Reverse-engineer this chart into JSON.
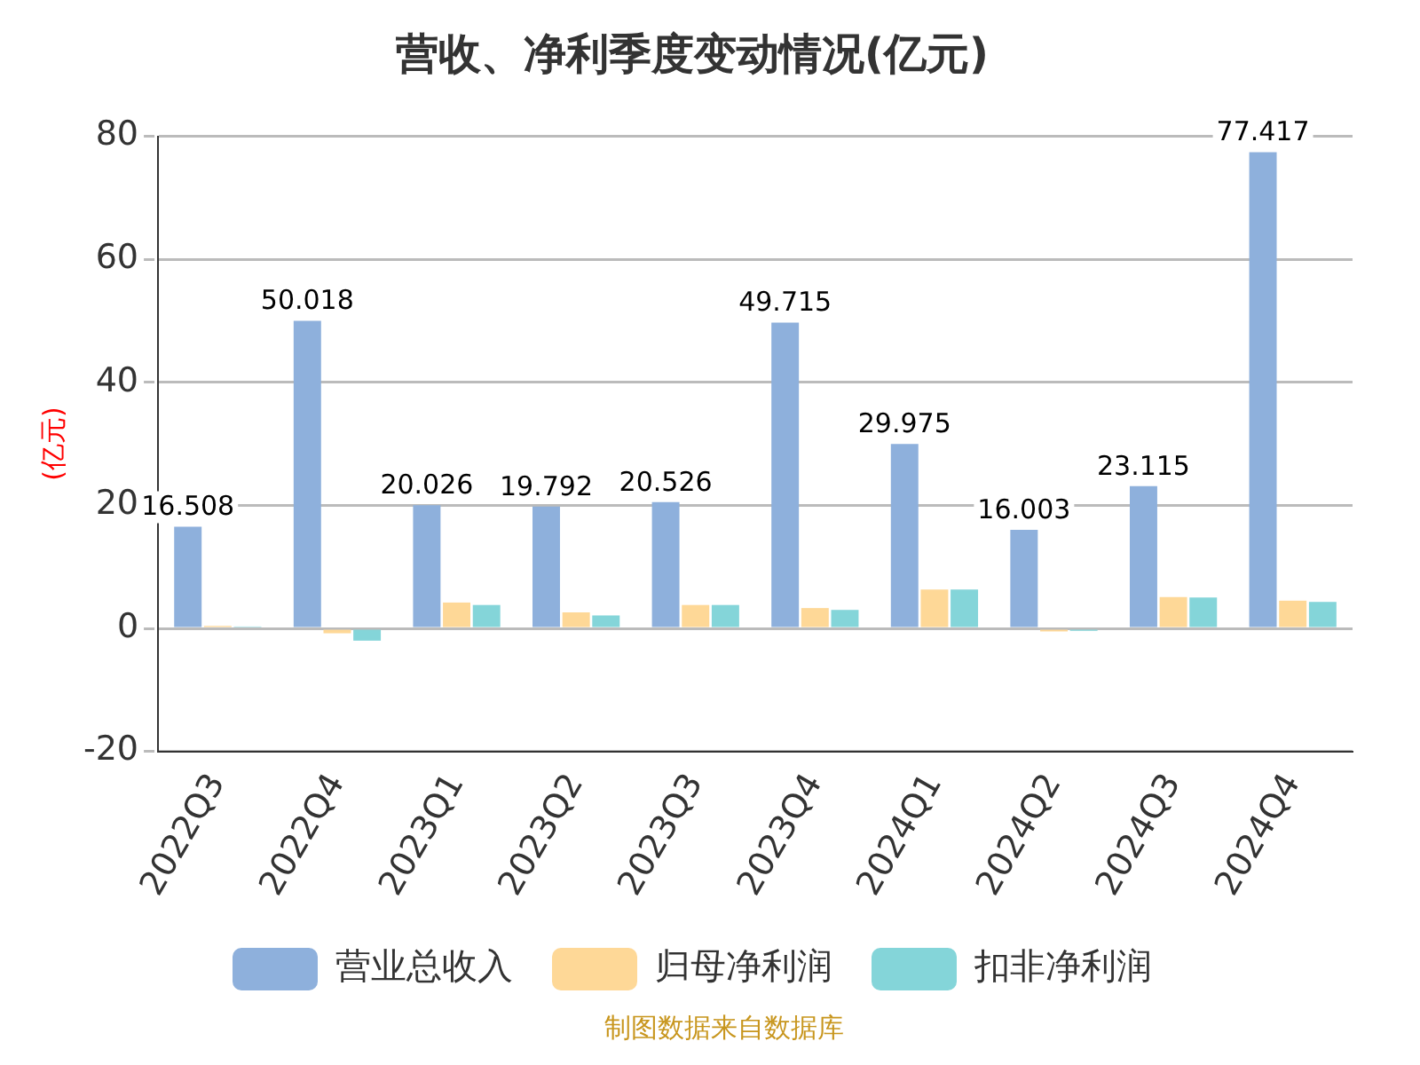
{
  "chart_data": {
    "type": "bar",
    "title": "营收、净利季度变动情况(亿元)",
    "ylabel": "(亿元)",
    "categories": [
      "2022Q3",
      "2022Q4",
      "2023Q1",
      "2023Q2",
      "2023Q3",
      "2023Q4",
      "2024Q1",
      "2024Q2",
      "2024Q3",
      "2024Q4"
    ],
    "series": [
      {
        "name": "营业总收入",
        "color": "#8eb0dc",
        "values": [
          16.508,
          50.018,
          20.026,
          19.792,
          20.526,
          49.715,
          29.975,
          16.003,
          23.115,
          77.417
        ],
        "value_labels": [
          "16.508",
          "50.018",
          "20.026",
          "19.792",
          "20.526",
          "49.715",
          "29.975",
          "16.003",
          "23.115",
          "77.417"
        ]
      },
      {
        "name": "归母净利润",
        "color": "#fed897",
        "values": [
          0.4,
          -0.8,
          4.2,
          2.6,
          3.8,
          3.3,
          6.3,
          -0.5,
          5.1,
          4.5
        ]
      },
      {
        "name": "扣非净利润",
        "color": "#84d5d9",
        "values": [
          0.3,
          -2.0,
          3.8,
          2.1,
          3.8,
          3.0,
          6.3,
          -0.4,
          5.0,
          4.3
        ]
      }
    ],
    "ylim": [
      -20,
      80
    ],
    "yticks": [
      -20,
      0,
      20,
      40,
      60,
      80
    ],
    "grid": "y",
    "legend": "bottom",
    "annotations": [
      "制图数据来自数据库"
    ]
  }
}
